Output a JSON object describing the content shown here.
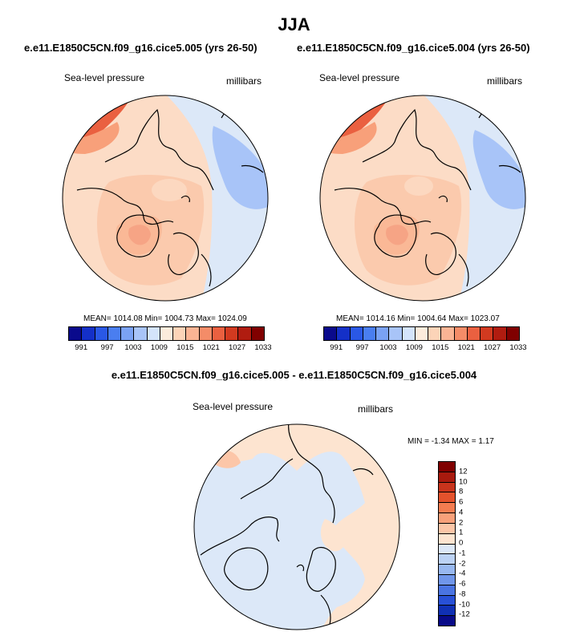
{
  "page": {
    "season_title": "JJA",
    "case_a_title": "e.e11.E1850C5CN.f09_g16.cice5.005 (yrs 26-50)",
    "case_b_title": "e.e11.E1850C5CN.f09_g16.cice5.004 (yrs 26-50)",
    "diff_title": "e.e11.E1850C5CN.f09_g16.cice5.005 - e.e11.E1850C5CN.f09_g16.cice5.004"
  },
  "panels": [
    {
      "variable": "Sea-level pressure",
      "units": "millibars",
      "stats": "MEAN= 1014.08  Min= 1004.73  Max= 1024.09"
    },
    {
      "variable": "Sea-level pressure",
      "units": "millibars",
      "stats": "MEAN= 1014.16  Min= 1004.64  Max= 1023.07"
    }
  ],
  "diff_panel": {
    "variable": "Sea-level pressure",
    "units": "millibars",
    "stats": "MIN =  -1.34 MAX =  1.17"
  },
  "abs_colorbar": {
    "colors": [
      "#0a0a8c",
      "#1430c8",
      "#2a58e6",
      "#4a7ef0",
      "#7aa2f4",
      "#a8c4f8",
      "#d4e4fb",
      "#fcecdc",
      "#fcd4b8",
      "#fab494",
      "#f48c68",
      "#ea6040",
      "#d23a20",
      "#b01c10",
      "#800000"
    ],
    "tick_labels": [
      "991",
      "997",
      "1003",
      "1009",
      "1015",
      "1021",
      "1027",
      "1033"
    ]
  },
  "diff_colorbar": {
    "colors": [
      "#800000",
      "#a81a0e",
      "#c8341c",
      "#e4522c",
      "#f47c50",
      "#f8a07a",
      "#fcc6a8",
      "#fde4d0",
      "#dce8f8",
      "#bcd2f4",
      "#98b8f0",
      "#7096ea",
      "#4a74e2",
      "#2850d6",
      "#1030b4",
      "#080a88"
    ],
    "tick_labels": [
      "12",
      "10",
      "8",
      "6",
      "4",
      "2",
      "1",
      "0",
      "-1",
      "-2",
      "-4",
      "-6",
      "-8",
      "-10",
      "-12"
    ]
  }
}
